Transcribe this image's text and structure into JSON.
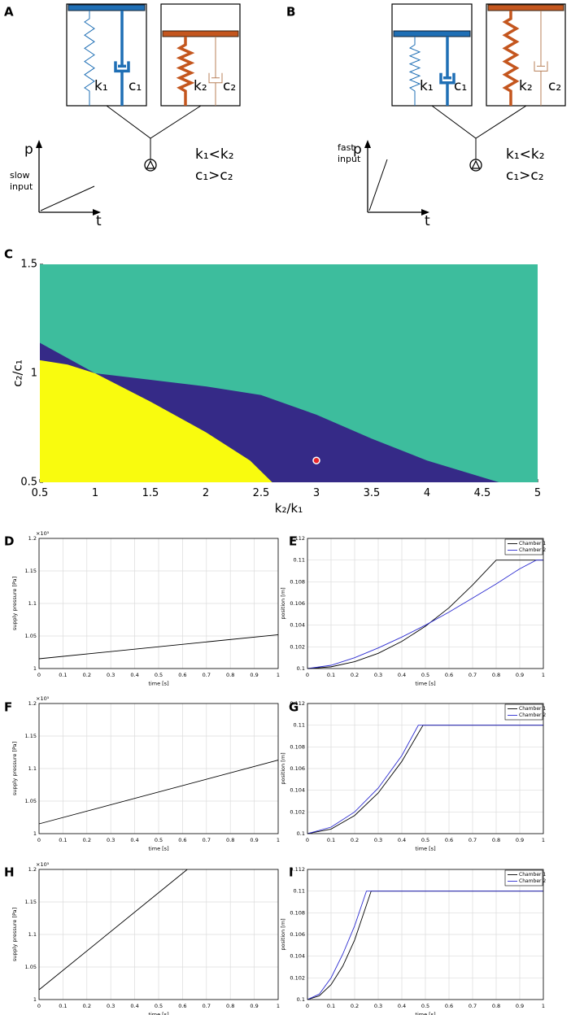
{
  "panel_labels": [
    "A",
    "B",
    "C",
    "D",
    "E",
    "F",
    "G",
    "H",
    "I"
  ],
  "diagrams": [
    {
      "spring_labels": [
        "k₁",
        "c₁",
        "k₂",
        "c₂"
      ],
      "relation": [
        "k₁<k₂",
        "c₁>c₂"
      ],
      "input_label": [
        "slow",
        "input"
      ],
      "axis_labels": [
        "p",
        "t"
      ]
    },
    {
      "spring_labels": [
        "k₁",
        "c₁",
        "k₂",
        "c₂"
      ],
      "relation": [
        "k₁<k₂",
        "c₁>c₂"
      ],
      "input_label": [
        "fast",
        "input"
      ],
      "axis_labels": [
        "p",
        "t"
      ]
    }
  ],
  "chart_data": [
    {
      "type": "region",
      "x_label": "k₂/k₁",
      "y_label": "c₂/c₁",
      "xlim": [
        0.5,
        5
      ],
      "ylim": [
        0.5,
        1.5
      ],
      "xticks": [
        0.5,
        1,
        1.5,
        2,
        2.5,
        3,
        3.5,
        4,
        4.5,
        5
      ],
      "yticks": [
        0.5,
        1,
        1.5
      ],
      "grid": false,
      "regions": [
        {
          "color": "#3dbd9d",
          "x": [
            0.5,
            5,
            5,
            0.5
          ],
          "y": [
            0.5,
            0.5,
            1.5,
            1.5
          ]
        },
        {
          "color": "#352a87",
          "x": [
            0.5,
            0.5,
            0.75,
            1,
            1.5,
            2,
            2.5,
            3,
            3.5,
            4,
            4.65
          ],
          "y": [
            0.5,
            1.14,
            1.07,
            1.0,
            0.97,
            0.94,
            0.9,
            0.81,
            0.7,
            0.6,
            0.5
          ]
        },
        {
          "color": "#f9fb0e",
          "x": [
            0.5,
            0.5,
            0.75,
            1,
            1.5,
            2,
            2.4,
            2.6
          ],
          "y": [
            0.5,
            1.06,
            1.04,
            1.0,
            0.87,
            0.73,
            0.6,
            0.5
          ]
        }
      ],
      "point": {
        "x": 3,
        "y": 0.6,
        "color": "#e8262a"
      }
    },
    {
      "type": "line",
      "x_label": "time [s]",
      "y_label": "supply pressure [Pa]",
      "exponent": "×10⁵",
      "xlim": [
        0,
        1
      ],
      "ylim": [
        100000,
        120000
      ],
      "xticks": [
        0,
        0.1,
        0.2,
        0.3,
        0.4,
        0.5,
        0.6,
        0.7,
        0.8,
        0.9,
        1
      ],
      "yticks": [
        {
          "value": 100000,
          "label": "1"
        },
        {
          "value": 105000,
          "label": "1.05"
        },
        {
          "value": 110000,
          "label": "1.1"
        },
        {
          "value": 115000,
          "label": "1.15"
        },
        {
          "value": 120000,
          "label": "1.2"
        }
      ],
      "grid": true,
      "series": [
        {
          "color": "#000000",
          "x": [
            0,
            1
          ],
          "values": [
            101500,
            105200
          ]
        }
      ]
    },
    {
      "type": "line",
      "x_label": "time [s]",
      "y_label": "position [m]",
      "xlim": [
        0,
        1
      ],
      "ylim": [
        0.1,
        0.112
      ],
      "xticks": [
        0,
        0.1,
        0.2,
        0.3,
        0.4,
        0.5,
        0.6,
        0.7,
        0.8,
        0.9,
        1
      ],
      "yticks": [
        0.1,
        0.102,
        0.104,
        0.106,
        0.108,
        0.11,
        0.112
      ],
      "grid": true,
      "series": [
        {
          "name": "Chamber 1",
          "color": "#000000",
          "x": [
            0,
            0.1,
            0.2,
            0.3,
            0.4,
            0.5,
            0.6,
            0.7,
            0.8,
            0.9,
            1
          ],
          "values": [
            0.1,
            0.10016,
            0.10063,
            0.1014,
            0.1025,
            0.1039,
            0.1056,
            0.1077,
            0.11,
            0.11,
            0.11
          ]
        },
        {
          "name": "Chamber 2",
          "color": "#2b2bd0",
          "x": [
            0,
            0.1,
            0.2,
            0.3,
            0.4,
            0.5,
            0.6,
            0.7,
            0.8,
            0.9,
            0.97,
            1
          ],
          "values": [
            0.1,
            0.1003,
            0.101,
            0.1019,
            0.1029,
            0.104,
            0.1052,
            0.1065,
            0.1078,
            0.1092,
            0.11,
            0.11
          ]
        }
      ]
    },
    {
      "type": "line",
      "x_label": "time [s]",
      "y_label": "supply pressure [Pa]",
      "exponent": "×10⁵",
      "xlim": [
        0,
        1
      ],
      "ylim": [
        100000,
        120000
      ],
      "xticks": [
        0,
        0.1,
        0.2,
        0.3,
        0.4,
        0.5,
        0.6,
        0.7,
        0.8,
        0.9,
        1
      ],
      "yticks": [
        {
          "value": 100000,
          "label": "1"
        },
        {
          "value": 105000,
          "label": "1.05"
        },
        {
          "value": 110000,
          "label": "1.1"
        },
        {
          "value": 115000,
          "label": "1.15"
        },
        {
          "value": 120000,
          "label": "1.2"
        }
      ],
      "grid": true,
      "series": [
        {
          "color": "#000000",
          "x": [
            0,
            1
          ],
          "values": [
            101500,
            111300
          ]
        }
      ]
    },
    {
      "type": "line",
      "x_label": "time [s]",
      "y_label": "position [m]",
      "xlim": [
        0,
        1
      ],
      "ylim": [
        0.1,
        0.112
      ],
      "xticks": [
        0,
        0.1,
        0.2,
        0.3,
        0.4,
        0.5,
        0.6,
        0.7,
        0.8,
        0.9,
        1
      ],
      "yticks": [
        0.1,
        0.102,
        0.104,
        0.106,
        0.108,
        0.11,
        0.112
      ],
      "grid": true,
      "series": [
        {
          "name": "Chamber 1",
          "color": "#000000",
          "x": [
            0,
            0.1,
            0.2,
            0.3,
            0.4,
            0.49,
            1
          ],
          "values": [
            0.1,
            0.10042,
            0.10167,
            0.10375,
            0.10666,
            0.11,
            0.11
          ]
        },
        {
          "name": "Chamber 2",
          "color": "#2b2bd0",
          "x": [
            0,
            0.1,
            0.2,
            0.3,
            0.4,
            0.47,
            1
          ],
          "values": [
            0.1,
            0.1006,
            0.102,
            0.1042,
            0.1072,
            0.11,
            0.11
          ]
        }
      ]
    },
    {
      "type": "line",
      "x_label": "time [s]",
      "y_label": "supply pressure [Pa]",
      "exponent": "×10⁵",
      "xlim": [
        0,
        1
      ],
      "ylim": [
        100000,
        120000
      ],
      "xticks": [
        0,
        0.1,
        0.2,
        0.3,
        0.4,
        0.5,
        0.6,
        0.7,
        0.8,
        0.9,
        1
      ],
      "yticks": [
        {
          "value": 100000,
          "label": "1"
        },
        {
          "value": 105000,
          "label": "1.05"
        },
        {
          "value": 110000,
          "label": "1.1"
        },
        {
          "value": 115000,
          "label": "1.15"
        },
        {
          "value": 120000,
          "label": "1.2"
        }
      ],
      "grid": true,
      "series": [
        {
          "color": "#000000",
          "x": [
            0,
            0.62
          ],
          "values": [
            101500,
            120000
          ]
        }
      ]
    },
    {
      "type": "line",
      "x_label": "time [s]",
      "y_label": "position [m]",
      "xlim": [
        0,
        1
      ],
      "ylim": [
        0.1,
        0.112
      ],
      "xticks": [
        0,
        0.1,
        0.2,
        0.3,
        0.4,
        0.5,
        0.6,
        0.7,
        0.8,
        0.9,
        1
      ],
      "yticks": [
        0.1,
        0.102,
        0.104,
        0.106,
        0.108,
        0.11,
        0.112
      ],
      "grid": true,
      "series": [
        {
          "name": "Chamber 1",
          "color": "#000000",
          "x": [
            0,
            0.05,
            0.1,
            0.15,
            0.2,
            0.27,
            1
          ],
          "values": [
            0.1,
            0.10034,
            0.10137,
            0.10309,
            0.10549,
            0.11,
            0.11
          ]
        },
        {
          "name": "Chamber 2",
          "color": "#2b2bd0",
          "x": [
            0,
            0.05,
            0.1,
            0.15,
            0.2,
            0.25,
            1
          ],
          "values": [
            0.1,
            0.1005,
            0.102,
            0.1042,
            0.1068,
            0.11,
            0.11
          ]
        }
      ]
    }
  ]
}
